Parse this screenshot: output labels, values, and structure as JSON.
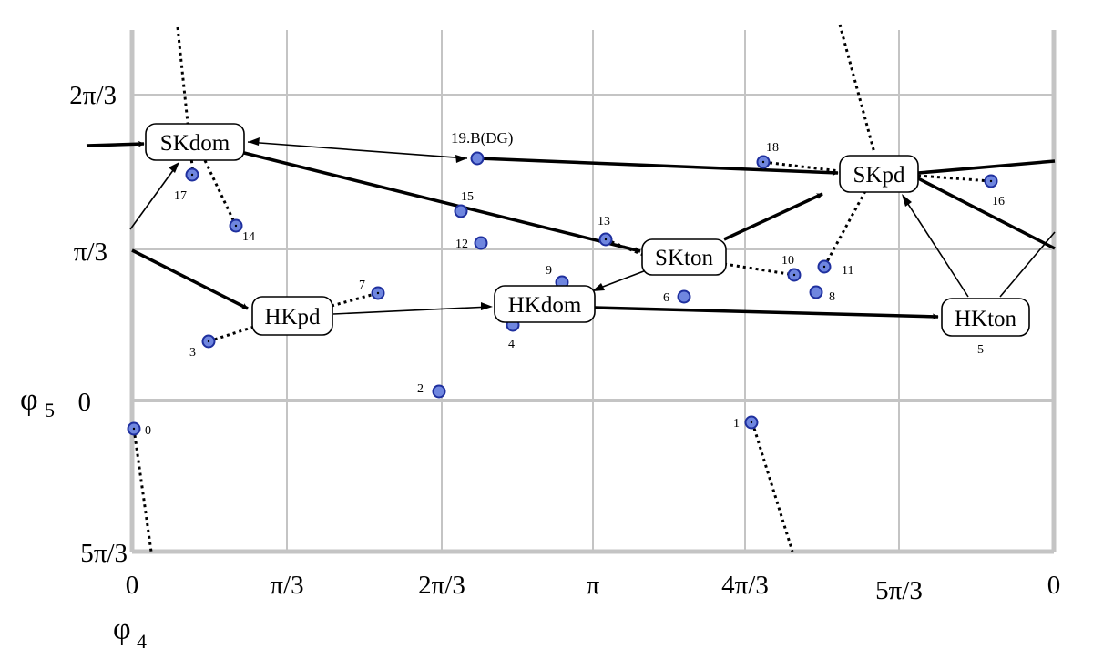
{
  "axes": {
    "x_name": "φ",
    "x_sub": "4",
    "y_name": "φ",
    "y_sub": "5",
    "x_ticks": [
      "0",
      "π/3",
      "2π/3",
      "π",
      "4π/3",
      "5π/3",
      "0"
    ],
    "y_ticks": [
      "2π/3",
      "π/3",
      "0",
      "5π/3"
    ],
    "colors": {
      "grid": "#c4c4c4",
      "point_fill": "#6f86df",
      "point_stroke": "#1e2f9e",
      "arrow": "#000000"
    }
  },
  "nodes": [
    {
      "id": "skdom",
      "label": "SKdom"
    },
    {
      "id": "skpd",
      "label": "SKpd"
    },
    {
      "id": "skton",
      "label": "SKton"
    },
    {
      "id": "hkpd",
      "label": "HKpd"
    },
    {
      "id": "hkdom",
      "label": "HKdom"
    },
    {
      "id": "hkton",
      "label": "HKton"
    }
  ],
  "points": [
    {
      "label": "0"
    },
    {
      "label": "1"
    },
    {
      "label": "2"
    },
    {
      "label": "3"
    },
    {
      "label": "4"
    },
    {
      "label": "5"
    },
    {
      "label": "6"
    },
    {
      "label": "7"
    },
    {
      "label": "8"
    },
    {
      "label": "9"
    },
    {
      "label": "10"
    },
    {
      "label": "11"
    },
    {
      "label": "12"
    },
    {
      "label": "13"
    },
    {
      "label": "14"
    },
    {
      "label": "15"
    },
    {
      "label": "16"
    },
    {
      "label": "17"
    },
    {
      "label": "18"
    },
    {
      "label": "19.B(DG)"
    }
  ]
}
